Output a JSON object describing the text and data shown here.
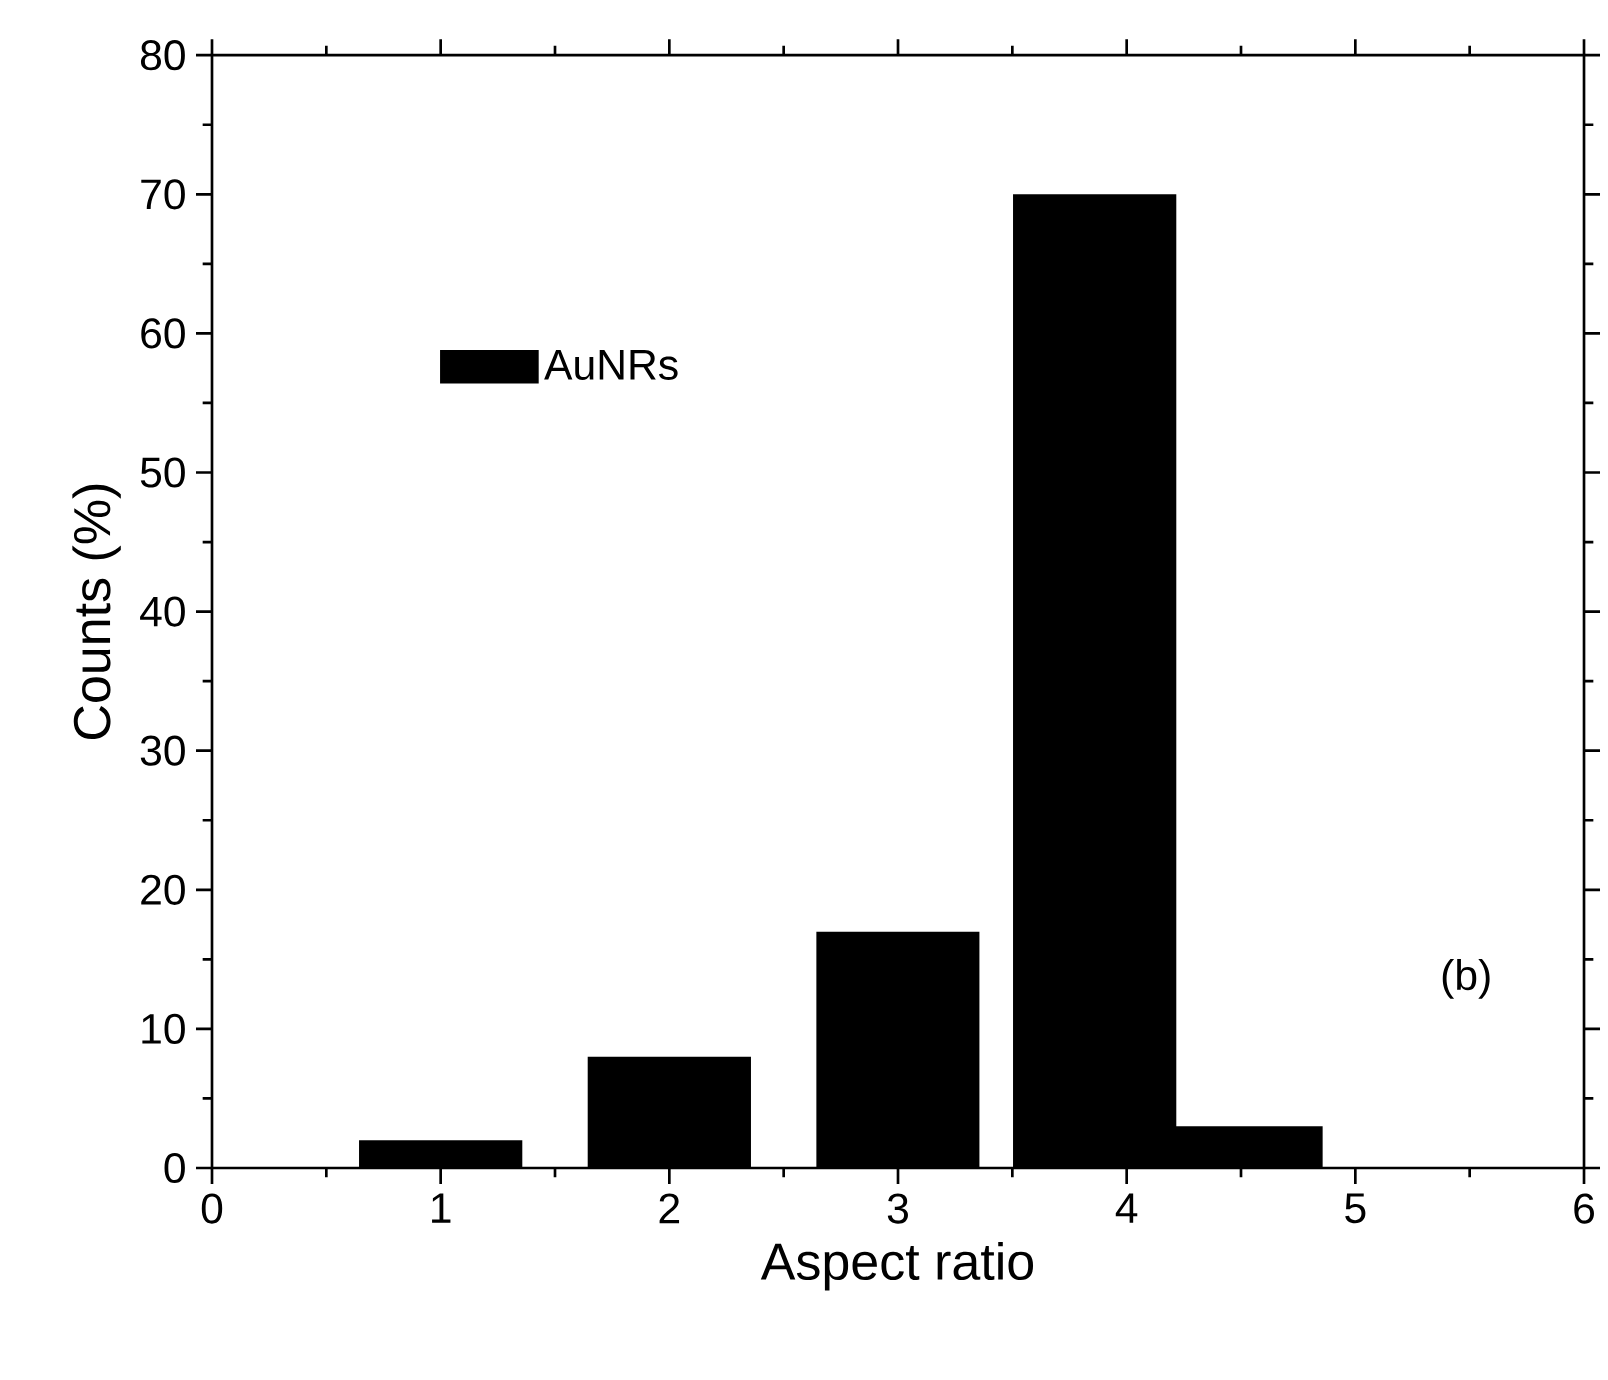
{
  "chart_data": {
    "type": "bar",
    "xlabel": "Aspect ratio",
    "ylabel": "Counts (%)",
    "x": [
      1,
      2,
      3,
      3.86,
      4.5
    ],
    "series": [
      {
        "name": "AuNRs",
        "color": "#000000",
        "values": [
          2,
          8,
          17,
          70,
          3
        ]
      }
    ],
    "xlim": [
      0,
      6
    ],
    "xticks": [
      0,
      1,
      2,
      3,
      4,
      5,
      6
    ],
    "ylim": [
      0,
      80
    ],
    "yticks": [
      0,
      10,
      20,
      30,
      40,
      50,
      60,
      70,
      80
    ],
    "legend": "top left",
    "grid": false,
    "annotations": [
      "(b)"
    ]
  }
}
